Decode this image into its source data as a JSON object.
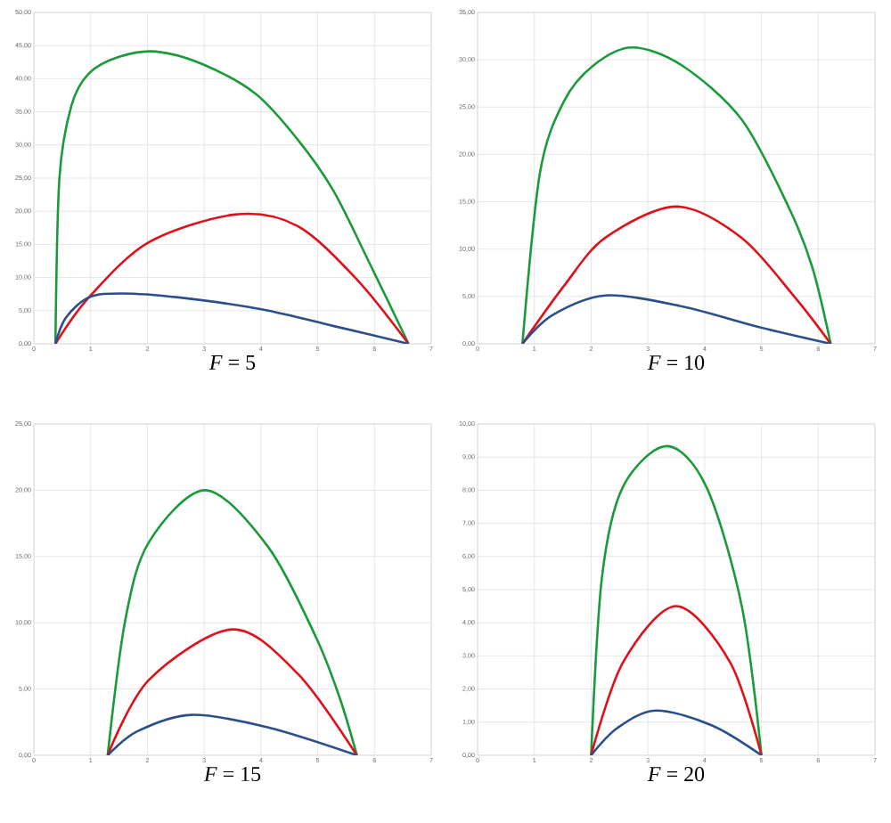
{
  "chart_data": [
    {
      "type": "line",
      "title": "*F* = 5",
      "xlim": [
        0,
        7
      ],
      "xticks": [
        0,
        1,
        2,
        3,
        4,
        5,
        6,
        7
      ],
      "ylim": [
        0,
        50
      ],
      "yticks": [
        {
          "value": 0,
          "label": "0,00"
        },
        {
          "value": 5,
          "label": "5,00"
        },
        {
          "value": 10,
          "label": "10,00"
        },
        {
          "value": 15,
          "label": "15,00"
        },
        {
          "value": 20,
          "label": "20,00"
        },
        {
          "value": 25,
          "label": "25,00"
        },
        {
          "value": 30,
          "label": "30,00"
        },
        {
          "value": 35,
          "label": "35,00"
        },
        {
          "value": 40,
          "label": "40,00"
        },
        {
          "value": 45,
          "label": "45,00"
        },
        {
          "value": 50,
          "label": "50,00"
        }
      ],
      "grid": true,
      "series": [
        {
          "color": "#1a9a3a",
          "x": [
            0.38,
            0.45,
            0.66,
            0.97,
            1.5,
            2.15,
            2.97,
            3.91,
            4.64,
            5.27,
            5.9,
            6.6
          ],
          "values": [
            0,
            25,
            35.9,
            40.8,
            43.3,
            44.1,
            42.2,
            37.7,
            30.9,
            23.2,
            12.4,
            0
          ]
        },
        {
          "color": "#e0101a",
          "x": [
            0.38,
            0.97,
            2.02,
            3.54,
            4.64,
            5.69,
            6.6
          ],
          "values": [
            0,
            7,
            15.3,
            19.5,
            17.8,
            9.7,
            0
          ]
        },
        {
          "color": "#2a4f8a",
          "x": [
            0.38,
            0.56,
            0.97,
            1.55,
            2.55,
            4.01,
            5.27,
            6.6
          ],
          "values": [
            0,
            3.9,
            7,
            7.6,
            7,
            5.2,
            2.7,
            0
          ]
        }
      ]
    },
    {
      "type": "line",
      "title": "*F* = 10",
      "xlim": [
        0,
        7
      ],
      "xticks": [
        0,
        1,
        2,
        3,
        4,
        5,
        6,
        7
      ],
      "ylim": [
        0,
        35
      ],
      "yticks": [
        {
          "value": 0,
          "label": "0,00"
        },
        {
          "value": 5,
          "label": "5,00"
        },
        {
          "value": 10,
          "label": "10,00"
        },
        {
          "value": 15,
          "label": "15,00"
        },
        {
          "value": 20,
          "label": "20,00"
        },
        {
          "value": 25,
          "label": "25,00"
        },
        {
          "value": 30,
          "label": "30,00"
        },
        {
          "value": 35,
          "label": "35,00"
        }
      ],
      "grid": true,
      "series": [
        {
          "color": "#1a9a3a",
          "x": [
            0.79,
            1.1,
            1.52,
            2.04,
            2.72,
            3.6,
            4.65,
            5.49,
            5.9,
            6.22
          ],
          "values": [
            0,
            18.1,
            25.6,
            29.4,
            31.3,
            29.4,
            23.7,
            14.3,
            8,
            0
          ]
        },
        {
          "color": "#e0101a",
          "x": [
            0.79,
            1.52,
            2.25,
            3.5,
            4.65,
            5.59,
            6.22
          ],
          "values": [
            0,
            6.1,
            11.2,
            14.5,
            11.2,
            4.9,
            0
          ]
        },
        {
          "color": "#2a4f8a",
          "x": [
            0.79,
            1.31,
            2.25,
            3.6,
            4.96,
            6.22
          ],
          "values": [
            0,
            3,
            5.1,
            3.95,
            1.76,
            0
          ]
        }
      ]
    },
    {
      "type": "line",
      "title": "*F* = 15",
      "xlim": [
        0,
        7
      ],
      "xticks": [
        0,
        1,
        2,
        3,
        4,
        5,
        6,
        7
      ],
      "ylim": [
        0,
        25
      ],
      "yticks": [
        {
          "value": 0,
          "label": "0,00"
        },
        {
          "value": 5,
          "label": "5,00"
        },
        {
          "value": 10,
          "label": "10,00"
        },
        {
          "value": 15,
          "label": "15,00"
        },
        {
          "value": 20,
          "label": "20,00"
        },
        {
          "value": 25,
          "label": "25,00"
        }
      ],
      "grid": true,
      "series": [
        {
          "color": "#1a9a3a",
          "x": [
            1.3,
            1.61,
            2.03,
            3.03,
            4.13,
            4.97,
            5.39,
            5.69
          ],
          "values": [
            0,
            10.2,
            16.1,
            20,
            15.7,
            8.9,
            4.3,
            0
          ]
        },
        {
          "color": "#e0101a",
          "x": [
            1.3,
            2.03,
            3.5,
            4.66,
            5.69
          ],
          "values": [
            0,
            5.7,
            9.5,
            6.1,
            0
          ]
        },
        {
          "color": "#2a4f8a",
          "x": [
            1.3,
            1.82,
            2.77,
            4.13,
            5.69
          ],
          "values": [
            0,
            1.8,
            3.05,
            2.1,
            0
          ]
        }
      ]
    },
    {
      "type": "line",
      "title": "*F* = 20",
      "xlim": [
        0,
        7
      ],
      "xticks": [
        0,
        1,
        2,
        3,
        4,
        5,
        6,
        7
      ],
      "ylim": [
        0,
        10
      ],
      "yticks": [
        {
          "value": 0,
          "label": "0,00"
        },
        {
          "value": 1,
          "label": "1,00"
        },
        {
          "value": 2,
          "label": "2,00"
        },
        {
          "value": 3,
          "label": "3,00"
        },
        {
          "value": 4,
          "label": "4,00"
        },
        {
          "value": 5,
          "label": "5,00"
        },
        {
          "value": 6,
          "label": "6,00"
        },
        {
          "value": 7,
          "label": "7,00"
        },
        {
          "value": 8,
          "label": "8,00"
        },
        {
          "value": 9,
          "label": "9,00"
        },
        {
          "value": 10,
          "label": "10,00"
        }
      ],
      "grid": true,
      "series": [
        {
          "color": "#1a9a3a",
          "x": [
            2,
            2.19,
            2.56,
            3.33,
            4.03,
            4.66,
            5
          ],
          "values": [
            0,
            5.36,
            8.1,
            9.33,
            8.1,
            4.45,
            0
          ]
        },
        {
          "color": "#e0101a",
          "x": [
            2,
            2.56,
            3.5,
            4.45,
            5
          ],
          "values": [
            0,
            2.8,
            4.5,
            2.8,
            0
          ]
        },
        {
          "color": "#2a4f8a",
          "x": [
            2,
            2.46,
            3.14,
            4.13,
            5
          ],
          "values": [
            0,
            0.82,
            1.35,
            0.9,
            0
          ]
        }
      ]
    }
  ]
}
